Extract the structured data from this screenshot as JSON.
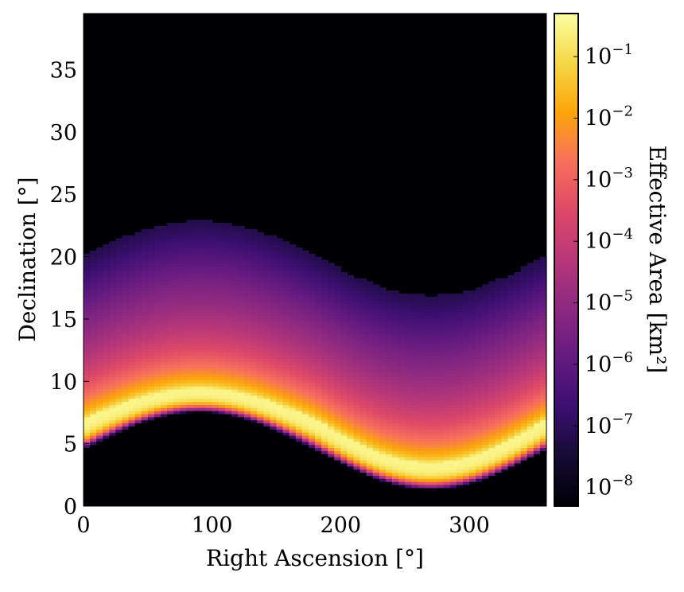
{
  "chart_data": {
    "type": "heatmap",
    "title": "",
    "xlabel": "Right Ascension [°]",
    "ylabel": "Declination [°]",
    "xlim": [
      0,
      360
    ],
    "ylim": [
      0,
      39.5
    ],
    "x_ticks": [
      0,
      100,
      200,
      300
    ],
    "y_ticks": [
      0,
      5,
      10,
      15,
      20,
      25,
      30,
      35
    ],
    "grid": false,
    "colormap": "inferno",
    "colorbar": {
      "label": "Effective Area [km²]",
      "scale": "log",
      "range": [
        5e-09,
        0.5
      ],
      "ticks": [
        {
          "value": 1e-08,
          "exp": "-8"
        },
        {
          "value": 1e-07,
          "exp": "-7"
        },
        {
          "value": 1e-06,
          "exp": "-6"
        },
        {
          "value": 1e-05,
          "exp": "-5"
        },
        {
          "value": 0.0001,
          "exp": "-4"
        },
        {
          "value": 0.001,
          "exp": "-3"
        },
        {
          "value": 0.01,
          "exp": "-2"
        },
        {
          "value": 0.1,
          "exp": "-1"
        }
      ]
    },
    "band": {
      "ra_range": [
        0,
        360
      ],
      "lower_edge_dec": {
        "at_ra_0": 4.5,
        "at_ra_90": 7.5,
        "at_ra_270": 1.3,
        "at_ra_360": 4.5
      },
      "peak_dec": {
        "at_ra_0": 7.0,
        "at_ra_90": 9.5,
        "at_ra_270": 3.5,
        "at_ra_360": 7.0
      },
      "upper_edge_dec": {
        "at_ra_0": 20.0,
        "at_ra_90": 22.8,
        "at_ra_270": 16.8,
        "at_ra_360": 20.0
      },
      "peak_value": 0.3,
      "upper_edge_value": 1e-07,
      "outside_value": 5e-09
    }
  }
}
